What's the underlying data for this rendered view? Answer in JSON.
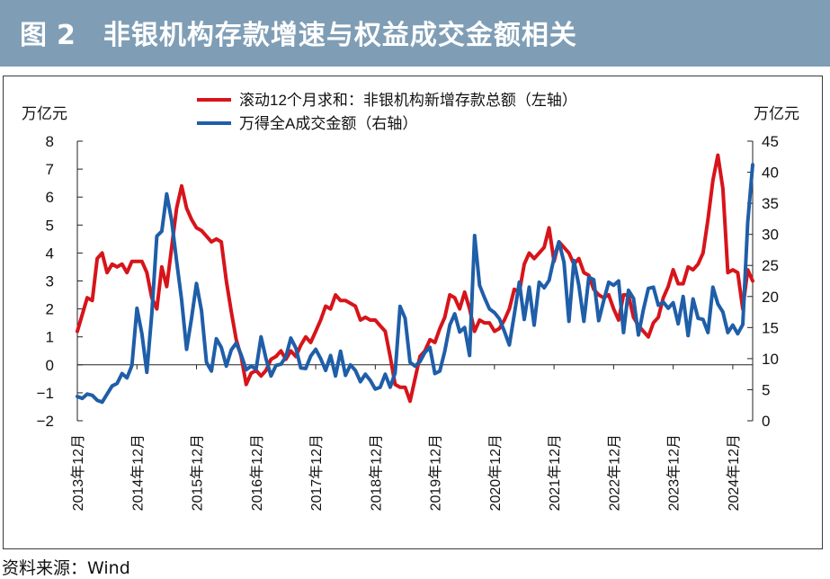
{
  "header": {
    "prefix": "图",
    "number": "2",
    "title": "非银机构存款增速与权益成交金额相关"
  },
  "source": "资料来源：Wind",
  "chart_data": {
    "type": "line",
    "unit_left": "万亿元",
    "unit_right": "万亿元",
    "yleft": {
      "min": -2,
      "max": 8,
      "ticks": [
        "8",
        "7",
        "6",
        "5",
        "4",
        "3",
        "2",
        "1",
        "0",
        "−1",
        "−2"
      ]
    },
    "yright": {
      "min": 0,
      "max": 45,
      "ticks": [
        "45",
        "40",
        "35",
        "30",
        "25",
        "20",
        "15",
        "10",
        "5",
        "0"
      ]
    },
    "x_ticks": [
      "2013年12月",
      "2014年12月",
      "2015年12月",
      "2016年12月",
      "2017年12月",
      "2018年12月",
      "2019年12月",
      "2020年12月",
      "2021年12月",
      "2022年12月",
      "2023年12月",
      "2024年12月"
    ],
    "legend": [
      {
        "label": "滚动12个月求和：非银机构新增存款总额（左轴）",
        "color": "#d7141a"
      },
      {
        "label": "万得全A成交金额（右轴）",
        "color": "#1f5ea8"
      }
    ],
    "grid": false,
    "series": [
      {
        "axis": "left",
        "color": "#d7141a",
        "points": [
          [
            0,
            1.2
          ],
          [
            2,
            2.4
          ],
          [
            3,
            2.3
          ],
          [
            4,
            3.8
          ],
          [
            5,
            4.0
          ],
          [
            6,
            3.3
          ],
          [
            7,
            3.6
          ],
          [
            8,
            3.5
          ],
          [
            9,
            3.6
          ],
          [
            10,
            3.3
          ],
          [
            11,
            3.7
          ],
          [
            13,
            3.7
          ],
          [
            14,
            3.3
          ],
          [
            15,
            2.4
          ],
          [
            16,
            2.0
          ],
          [
            17,
            3.5
          ],
          [
            18,
            2.8
          ],
          [
            19,
            4.2
          ],
          [
            20,
            5.6
          ],
          [
            21,
            6.4
          ],
          [
            22,
            5.6
          ],
          [
            23,
            5.2
          ],
          [
            24,
            4.9
          ],
          [
            25,
            4.8
          ],
          [
            26,
            4.6
          ],
          [
            27,
            4.4
          ],
          [
            28,
            4.5
          ],
          [
            29,
            4.4
          ],
          [
            30,
            3.0
          ],
          [
            31,
            1.9
          ],
          [
            32,
            0.9
          ],
          [
            33,
            0.3
          ],
          [
            34,
            -0.7
          ],
          [
            35,
            -0.3
          ],
          [
            36,
            -0.2
          ],
          [
            37,
            -0.4
          ],
          [
            38,
            -0.2
          ],
          [
            39,
            0.2
          ],
          [
            40,
            0.3
          ],
          [
            41,
            0.5
          ],
          [
            42,
            0.2
          ],
          [
            43,
            0.5
          ],
          [
            44,
            0.3
          ],
          [
            45,
            0.7
          ],
          [
            46,
            1.0
          ],
          [
            47,
            0.8
          ],
          [
            48,
            1.2
          ],
          [
            49,
            1.6
          ],
          [
            50,
            2.1
          ],
          [
            51,
            2.0
          ],
          [
            52,
            2.5
          ],
          [
            53,
            2.3
          ],
          [
            54,
            2.3
          ],
          [
            55,
            2.2
          ],
          [
            56,
            2.1
          ],
          [
            57,
            1.6
          ],
          [
            58,
            1.7
          ],
          [
            59,
            1.6
          ],
          [
            60,
            1.6
          ],
          [
            61,
            1.4
          ],
          [
            62,
            1.2
          ],
          [
            63,
            0.3
          ],
          [
            64,
            -0.7
          ],
          [
            65,
            -0.8
          ],
          [
            66,
            -0.8
          ],
          [
            67,
            -1.3
          ],
          [
            68,
            -0.5
          ],
          [
            69,
            0.3
          ],
          [
            70,
            0.5
          ],
          [
            71,
            0.9
          ],
          [
            72,
            0.8
          ],
          [
            73,
            1.3
          ],
          [
            74,
            1.7
          ],
          [
            75,
            2.5
          ],
          [
            76,
            2.4
          ],
          [
            77,
            2.0
          ],
          [
            78,
            2.6
          ],
          [
            79,
            2.0
          ],
          [
            80,
            1.2
          ],
          [
            81,
            1.6
          ],
          [
            82,
            1.5
          ],
          [
            83,
            1.5
          ],
          [
            84,
            1.2
          ],
          [
            85,
            1.3
          ],
          [
            86,
            1.6
          ],
          [
            87,
            2.0
          ],
          [
            88,
            2.7
          ],
          [
            89,
            2.6
          ],
          [
            90,
            3.6
          ],
          [
            91,
            4.0
          ],
          [
            92,
            3.8
          ],
          [
            93,
            4.0
          ],
          [
            94,
            4.2
          ],
          [
            95,
            4.9
          ],
          [
            96,
            3.7
          ],
          [
            97,
            4.4
          ],
          [
            98,
            4.2
          ],
          [
            99,
            4.0
          ],
          [
            100,
            3.6
          ],
          [
            101,
            3.8
          ],
          [
            102,
            3.3
          ],
          [
            103,
            3.2
          ],
          [
            104,
            2.7
          ],
          [
            105,
            2.5
          ],
          [
            106,
            2.4
          ],
          [
            107,
            2.5
          ],
          [
            108,
            2.0
          ],
          [
            109,
            1.6
          ],
          [
            110,
            2.5
          ],
          [
            111,
            2.5
          ],
          [
            112,
            1.7
          ],
          [
            113,
            1.4
          ],
          [
            114,
            1.2
          ],
          [
            115,
            1.0
          ],
          [
            116,
            1.5
          ],
          [
            117,
            1.7
          ],
          [
            118,
            2.4
          ],
          [
            119,
            2.8
          ],
          [
            120,
            3.4
          ],
          [
            121,
            2.9
          ],
          [
            122,
            2.9
          ],
          [
            123,
            3.5
          ],
          [
            124,
            3.4
          ],
          [
            125,
            3.6
          ],
          [
            126,
            4.0
          ],
          [
            127,
            5.2
          ],
          [
            128,
            6.6
          ],
          [
            129,
            7.5
          ],
          [
            130,
            6.3
          ],
          [
            131,
            3.3
          ],
          [
            132,
            3.4
          ],
          [
            133,
            3.3
          ],
          [
            134,
            2.0
          ],
          [
            135,
            3.4
          ],
          [
            136,
            3.0
          ]
        ]
      },
      {
        "axis": "right",
        "color": "#1f5ea8",
        "points": [
          [
            0,
            3.9
          ],
          [
            1,
            3.6
          ],
          [
            2,
            4.3
          ],
          [
            3,
            4.1
          ],
          [
            4,
            3.3
          ],
          [
            5,
            3.0
          ],
          [
            6,
            4.3
          ],
          [
            7,
            5.6
          ],
          [
            8,
            6.0
          ],
          [
            9,
            7.6
          ],
          [
            10,
            6.9
          ],
          [
            11,
            8.9
          ],
          [
            12,
            18.1
          ],
          [
            13,
            14.0
          ],
          [
            14,
            7.8
          ],
          [
            15,
            17.2
          ],
          [
            16,
            29.7
          ],
          [
            17,
            30.5
          ],
          [
            18,
            36.5
          ],
          [
            19,
            32.2
          ],
          [
            20,
            25.7
          ],
          [
            21,
            19.4
          ],
          [
            22,
            11.5
          ],
          [
            23,
            16.5
          ],
          [
            24,
            22.1
          ],
          [
            25,
            17.7
          ],
          [
            26,
            9.4
          ],
          [
            27,
            8.0
          ],
          [
            28,
            13.2
          ],
          [
            29,
            11.8
          ],
          [
            30,
            8.8
          ],
          [
            31,
            11.4
          ],
          [
            32,
            12.5
          ],
          [
            33,
            10.6
          ],
          [
            34,
            8.2
          ],
          [
            35,
            8.8
          ],
          [
            36,
            8.3
          ],
          [
            37,
            13.5
          ],
          [
            38,
            10.0
          ],
          [
            39,
            7.2
          ],
          [
            40,
            8.9
          ],
          [
            41,
            9.1
          ],
          [
            42,
            10.3
          ],
          [
            43,
            13.3
          ],
          [
            44,
            11.7
          ],
          [
            45,
            8.5
          ],
          [
            46,
            8.4
          ],
          [
            47,
            10.4
          ],
          [
            48,
            11.5
          ],
          [
            49,
            10.0
          ],
          [
            50,
            8.1
          ],
          [
            51,
            10.5
          ],
          [
            52,
            7.2
          ],
          [
            53,
            11.2
          ],
          [
            54,
            7.3
          ],
          [
            55,
            9.0
          ],
          [
            56,
            8.1
          ],
          [
            57,
            6.3
          ],
          [
            58,
            7.5
          ],
          [
            59,
            6.5
          ],
          [
            60,
            5.1
          ],
          [
            61,
            5.4
          ],
          [
            62,
            7.5
          ],
          [
            63,
            5.4
          ],
          [
            64,
            7.7
          ],
          [
            65,
            18.4
          ],
          [
            66,
            16.5
          ],
          [
            67,
            9.4
          ],
          [
            68,
            8.8
          ],
          [
            69,
            9.5
          ],
          [
            70,
            11.0
          ],
          [
            71,
            11.8
          ],
          [
            72,
            7.6
          ],
          [
            73,
            8.0
          ],
          [
            74,
            11.2
          ],
          [
            75,
            15.4
          ],
          [
            76,
            17.2
          ],
          [
            77,
            14.3
          ],
          [
            78,
            15.0
          ],
          [
            79,
            10.5
          ],
          [
            80,
            29.8
          ],
          [
            81,
            21.8
          ],
          [
            82,
            19.8
          ],
          [
            83,
            18.0
          ],
          [
            84,
            17.4
          ],
          [
            85,
            16.4
          ],
          [
            86,
            14.4
          ],
          [
            87,
            12.2
          ],
          [
            88,
            17.1
          ],
          [
            89,
            22.3
          ],
          [
            90,
            16.3
          ],
          [
            91,
            21.5
          ],
          [
            92,
            15.4
          ],
          [
            93,
            22.3
          ],
          [
            94,
            21.4
          ],
          [
            95,
            22.6
          ],
          [
            96,
            26.2
          ],
          [
            97,
            28.8
          ],
          [
            98,
            25.5
          ],
          [
            99,
            16.0
          ],
          [
            100,
            25.8
          ],
          [
            101,
            21.8
          ],
          [
            102,
            16.0
          ],
          [
            103,
            23.1
          ],
          [
            104,
            22.7
          ],
          [
            105,
            16.1
          ],
          [
            106,
            19.3
          ],
          [
            107,
            22.3
          ],
          [
            108,
            21.8
          ],
          [
            109,
            22.5
          ],
          [
            110,
            14.2
          ],
          [
            111,
            21.0
          ],
          [
            112,
            19.7
          ],
          [
            113,
            13.8
          ],
          [
            114,
            17.9
          ],
          [
            115,
            21.3
          ],
          [
            116,
            21.5
          ],
          [
            117,
            18.6
          ],
          [
            118,
            19.1
          ],
          [
            119,
            18.1
          ],
          [
            120,
            19.0
          ],
          [
            121,
            15.6
          ],
          [
            122,
            20.0
          ],
          [
            123,
            13.7
          ],
          [
            124,
            19.6
          ],
          [
            125,
            16.5
          ],
          [
            126,
            16.3
          ],
          [
            127,
            14.2
          ],
          [
            128,
            21.5
          ],
          [
            129,
            18.8
          ],
          [
            130,
            17.5
          ],
          [
            131,
            14.2
          ],
          [
            132,
            15.4
          ],
          [
            133,
            14.0
          ],
          [
            134,
            15.5
          ],
          [
            135,
            31.9
          ],
          [
            136,
            41.2
          ]
        ]
      }
    ]
  }
}
